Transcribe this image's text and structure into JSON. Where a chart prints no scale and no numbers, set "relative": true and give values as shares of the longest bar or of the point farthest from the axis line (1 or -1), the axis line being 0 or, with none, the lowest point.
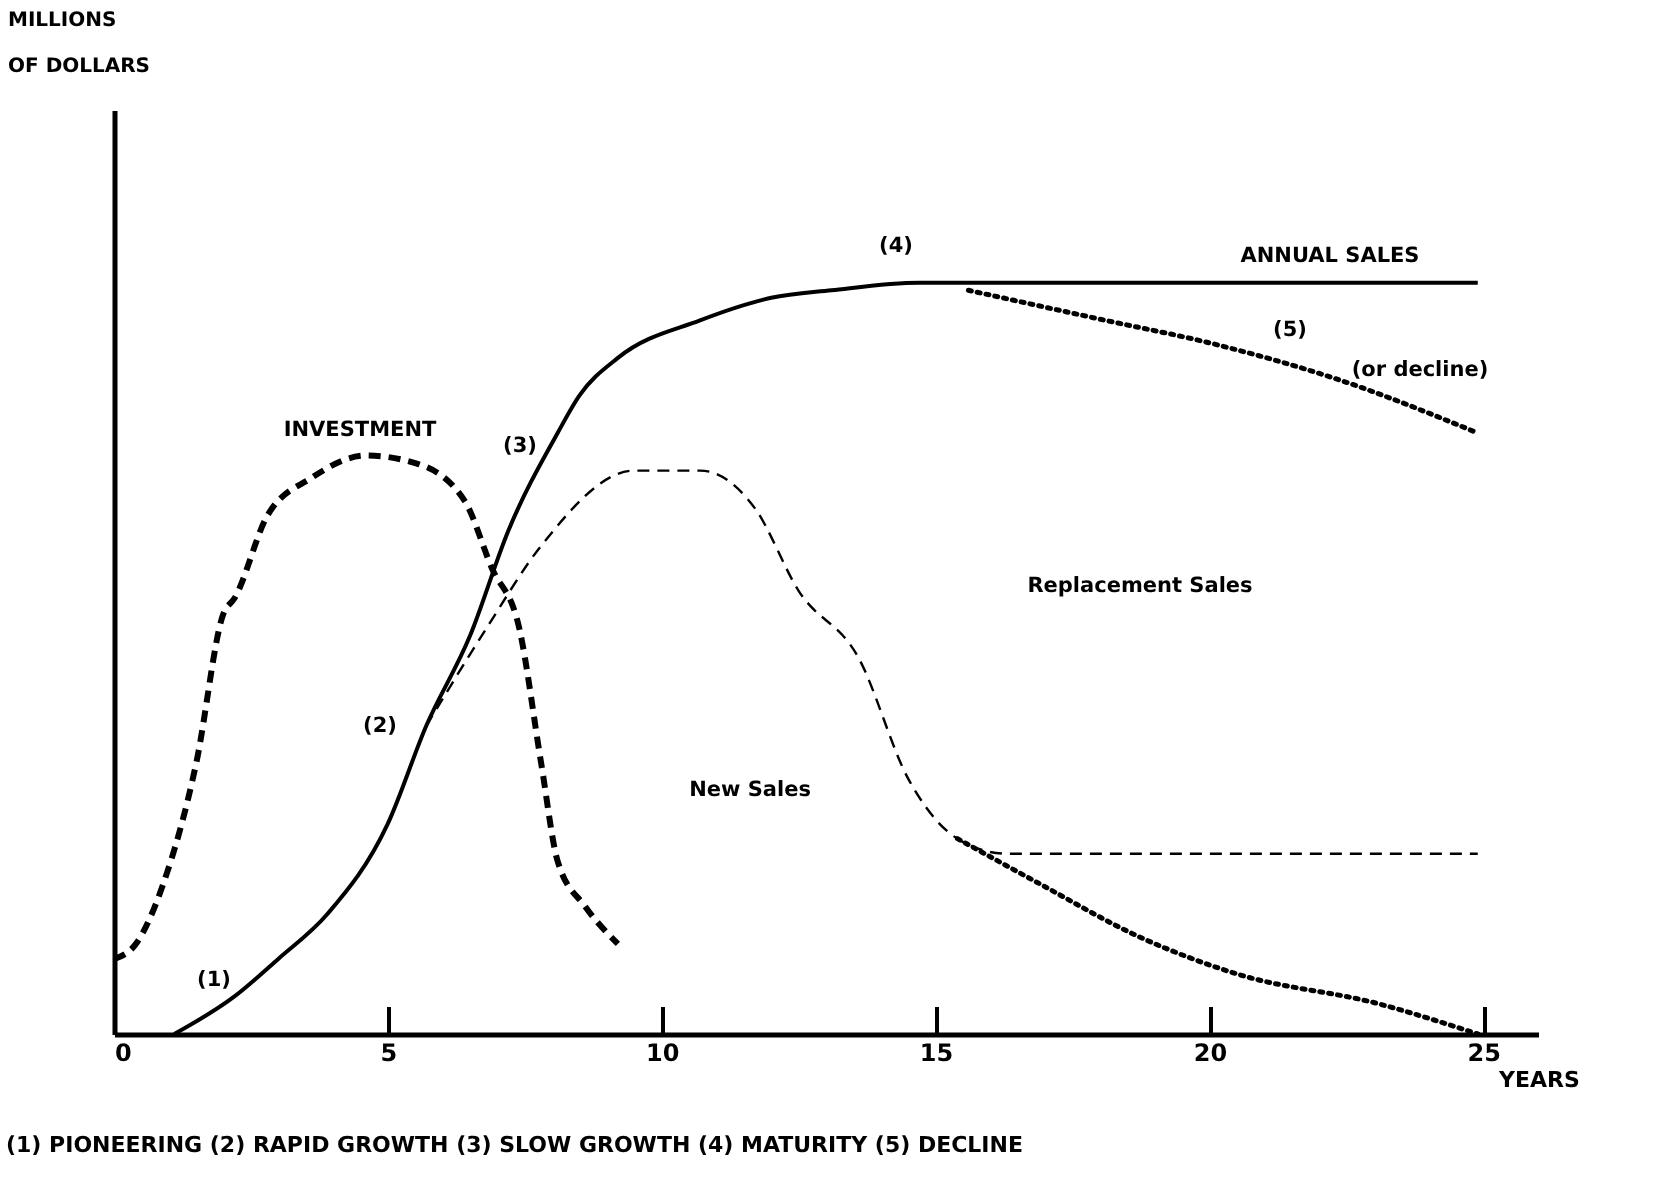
{
  "chart_data": {
    "type": "line",
    "relative": true,
    "xlabel": "YEARS",
    "xlim": [
      0,
      26
    ],
    "xticks": [
      0,
      5,
      10,
      15,
      20,
      25
    ],
    "series": [
      {
        "color": "#000000",
        "line_style": "solid",
        "x": [
          1.1,
          2.2,
          3.0,
          3.9,
          5.0,
          5.7,
          6.5,
          7.2,
          8.1,
          8.5,
          9.2,
          10.7,
          12.0,
          13.1,
          14.7,
          19.0,
          24.9
        ],
        "values": [
          0,
          0.05,
          0.1,
          0.16,
          0.28,
          0.41,
          0.53,
          0.67,
          0.8,
          0.85,
          0.9,
          0.95,
          0.98,
          0.99,
          1,
          1,
          1
        ]
      },
      {
        "color": "#000000",
        "line_style": "dotted",
        "x": [
          15.6,
          18.1,
          20.0,
          22.4,
          24.9
        ],
        "values": [
          0.99,
          0.95,
          0.92,
          0.87,
          0.8
        ]
      },
      {
        "color": "#000000",
        "line_style": "dashed",
        "x": [
          0,
          0.4,
          0.9,
          1.5,
          2.0,
          2.2,
          2.8,
          3.6,
          4.6,
          5.5,
          6.4,
          6.9,
          7.4,
          7.8,
          8.1,
          8.6,
          9.2
        ],
        "values": [
          0.1,
          0.12,
          0.2,
          0.36,
          0.56,
          0.58,
          0.69,
          0.74,
          0.77,
          0.76,
          0.71,
          0.62,
          0.54,
          0.36,
          0.23,
          0.17,
          0.12
        ]
      },
      {
        "color": "#000000",
        "line_style": "dashed",
        "x": [
          5.7,
          6.8,
          7.8,
          9.5,
          10.7,
          11.7,
          12.5,
          13.6,
          14.5,
          15.4,
          16.3,
          20.0,
          24.9
        ],
        "values": [
          0.41,
          0.54,
          0.65,
          0.75,
          0.75,
          0.7,
          0.59,
          0.5,
          0.34,
          0.26,
          0.24,
          0.24,
          0.24
        ]
      },
      {
        "color": "#000000",
        "line_style": "dotted",
        "x": [
          15.4,
          16.9,
          18.7,
          20.5,
          23.1,
          24.9
        ],
        "values": [
          0.26,
          0.2,
          0.13,
          0.08,
          0.04,
          0
        ]
      }
    ],
    "annotations": [
      "MILLIONS OF DOLLARS",
      "(1)",
      "(2)",
      "(3)",
      "(4)",
      "ANNUAL SALES",
      "(5)",
      "(or decline)",
      "INVESTMENT",
      "Replacement   Sales",
      "New Sales",
      "(1) PIONEERING   (2) RAPID  GROWTH   (3) SLOW  GROWTH   (4) MATURITY   (5) DECLINE"
    ]
  }
}
